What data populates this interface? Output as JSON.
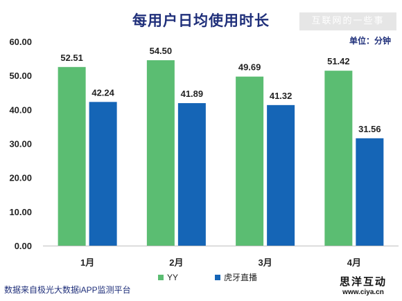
{
  "chart_data": {
    "type": "bar",
    "title": "每用户日均使用时长",
    "unit_label": "单位：分钟",
    "categories": [
      "1月",
      "2月",
      "3月",
      "4月"
    ],
    "series": [
      {
        "name": "YY",
        "values": [
          52.51,
          54.5,
          49.69,
          51.42
        ],
        "color": "#5bbd72"
      },
      {
        "name": "虎牙直播",
        "values": [
          42.24,
          41.89,
          41.32,
          31.56
        ],
        "color": "#1565b6"
      }
    ],
    "ylim": [
      0,
      60
    ],
    "yticks": [
      "0.00",
      "10.00",
      "20.00",
      "30.00",
      "40.00",
      "50.00",
      "60.00"
    ],
    "grid": false,
    "legend": "bottom-center"
  },
  "source_note": "数据来自极光大数据iAPP监测平台",
  "watermark_text": "互联网的一些事",
  "brand": {
    "name": "思洋互动",
    "url": "www.ciya.cn"
  }
}
